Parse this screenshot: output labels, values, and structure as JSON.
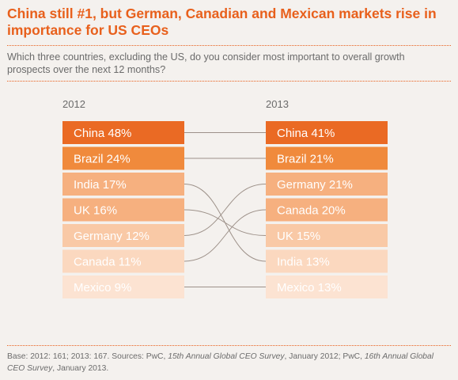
{
  "title": "China still #1, but German, Canadian and Mexican markets rise in importance for US CEOs",
  "subtitle": "Which three countries, excluding the US, do you consider most important to overall growth prospects over the next 12 months?",
  "footnote": {
    "part1": "Base: 2012: 161; 2013: 167. Sources: PwC, ",
    "part2": "15th Annual Global CEO Survey",
    "part3": ", January 2012; PwC, ",
    "part4": "16th Annual Global CEO Survey",
    "part5": ", January 2013."
  },
  "colors": {
    "accent": "#e8601c",
    "rank_fills": [
      "#ea6a24",
      "#f08a3c",
      "#f6b07f",
      "#f6b07f",
      "#f9c9a6",
      "#fbd8bf",
      "#fce3d2"
    ],
    "connector": "#9d9189"
  },
  "chart_data": {
    "type": "slope",
    "unit": "%",
    "columns": [
      {
        "year": "2012",
        "items": [
          {
            "country": "China",
            "value": 48
          },
          {
            "country": "Brazil",
            "value": 24
          },
          {
            "country": "India",
            "value": 17
          },
          {
            "country": "UK",
            "value": 16
          },
          {
            "country": "Germany",
            "value": 12
          },
          {
            "country": "Canada",
            "value": 11
          },
          {
            "country": "Mexico",
            "value": 9
          }
        ]
      },
      {
        "year": "2013",
        "items": [
          {
            "country": "China",
            "value": 41
          },
          {
            "country": "Brazil",
            "value": 21
          },
          {
            "country": "Germany",
            "value": 21
          },
          {
            "country": "Canada",
            "value": 20
          },
          {
            "country": "UK",
            "value": 15
          },
          {
            "country": "India",
            "value": 13
          },
          {
            "country": "Mexico",
            "value": 13
          }
        ]
      }
    ]
  }
}
